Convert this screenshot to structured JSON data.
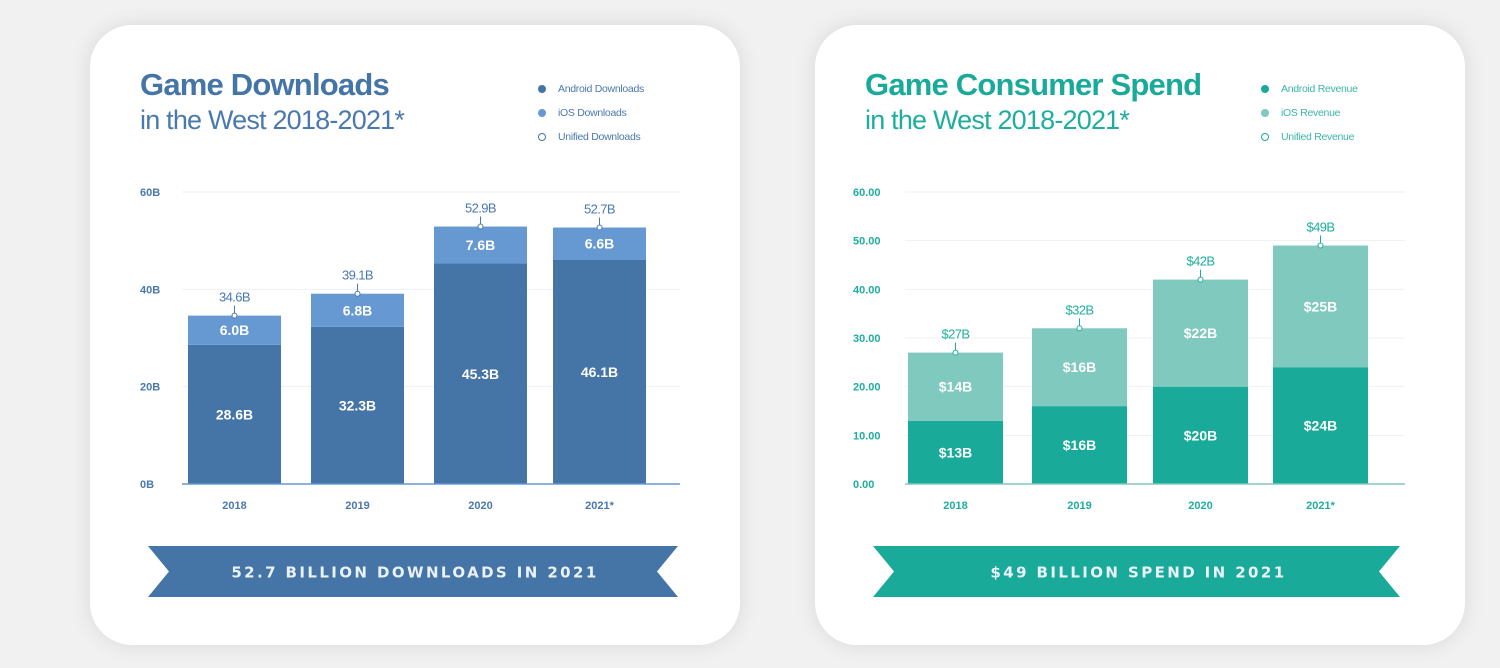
{
  "chart_data": [
    {
      "type": "bar",
      "stacked": true,
      "title": "Game Downloads",
      "subtitle": "in the West 2018-2021*",
      "xlabel": "",
      "ylabel": "",
      "categories": [
        "2018",
        "2019",
        "2020",
        "2021*"
      ],
      "series": [
        {
          "name": "Android Downloads",
          "values": [
            28.6,
            32.3,
            45.3,
            46.1
          ],
          "labels": [
            "28.6B",
            "32.3B",
            "45.3B",
            "46.1B"
          ],
          "color": "#4574a7"
        },
        {
          "name": "iOS Downloads",
          "values": [
            6.0,
            6.8,
            7.6,
            6.6
          ],
          "labels": [
            "6.0B",
            "6.8B",
            "7.6B",
            "6.6B"
          ],
          "color": "#6699d2"
        }
      ],
      "totals": {
        "name": "Unified Downloads",
        "values": [
          34.6,
          39.1,
          52.9,
          52.7
        ],
        "labels": [
          "34.6B",
          "39.1B",
          "52.9B",
          "52.7B"
        ]
      },
      "yticks": [
        0,
        20,
        40,
        60
      ],
      "ytick_labels": [
        "0B",
        "20B",
        "40B",
        "60B"
      ],
      "ylim": [
        0,
        60
      ],
      "grid": true,
      "legend": [
        "Android Downloads",
        "iOS Downloads",
        "Unified Downloads"
      ],
      "legend_position": "top-right",
      "banner": "52.7 BILLION DOWNLOADS IN 2021",
      "colors": {
        "accent": "#4574a7",
        "light": "#6699d2",
        "text": "#4a78b0"
      }
    },
    {
      "type": "bar",
      "stacked": true,
      "title": "Game Consumer Spend",
      "subtitle": "in the West 2018-2021*",
      "xlabel": "",
      "ylabel": "",
      "categories": [
        "2018",
        "2019",
        "2020",
        "2021*"
      ],
      "series": [
        {
          "name": "Android Revenue",
          "values": [
            13,
            16,
            20,
            24
          ],
          "labels": [
            "$13B",
            "$16B",
            "$20B",
            "$24B"
          ],
          "color": "#19aa9a"
        },
        {
          "name": "iOS Revenue",
          "values": [
            14,
            16,
            22,
            25
          ],
          "labels": [
            "$14B",
            "$16B",
            "$22B",
            "$25B"
          ],
          "color": "#80c9bf"
        }
      ],
      "totals": {
        "name": "Unified Revenue",
        "values": [
          27,
          32,
          42,
          49
        ],
        "labels": [
          "$27B",
          "$32B",
          "$42B",
          "$49B"
        ]
      },
      "yticks": [
        0,
        10,
        20,
        30,
        40,
        50,
        60
      ],
      "ytick_labels": [
        "0.00",
        "10.00",
        "20.00",
        "30.00",
        "40.00",
        "50.00",
        "60.00"
      ],
      "ylim": [
        0,
        60
      ],
      "grid": true,
      "legend": [
        "Android Revenue",
        "iOS Revenue",
        "Unified Revenue"
      ],
      "legend_position": "top-right",
      "banner": "$49 BILLION SPEND IN 2021",
      "colors": {
        "accent": "#19aa9a",
        "light": "#80c9bf",
        "text": "#1fae9e"
      }
    }
  ]
}
